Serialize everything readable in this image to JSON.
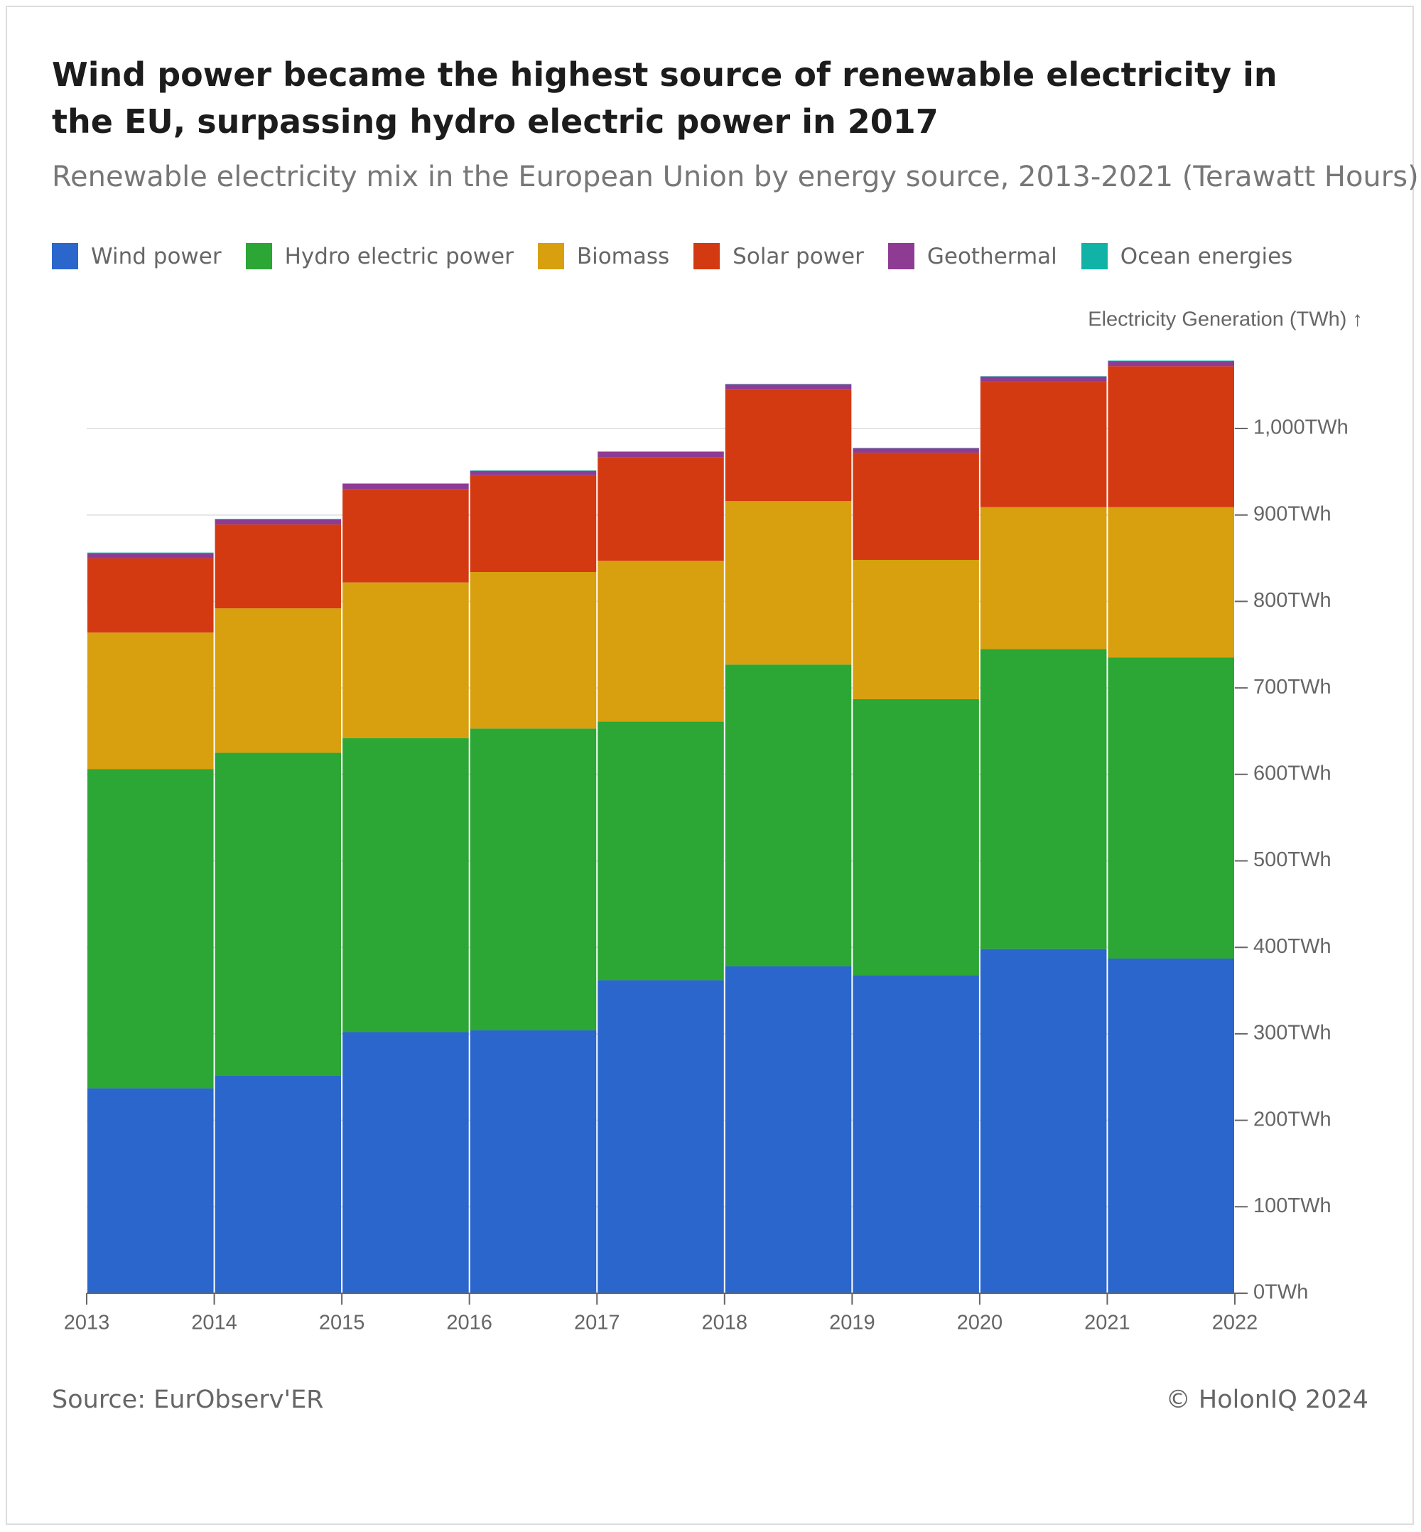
{
  "chart_data": {
    "type": "bar",
    "stacked": true,
    "title": "Wind power became the highest source of renewable electricity in the EU, surpassing hydro electric power in 2017",
    "subtitle": "Renewable electricity mix in the European Union by energy source, 2013-2021 (Terawatt Hours)",
    "y_axis_label": "Electricity Generation (TWh) ↑",
    "source": "Source: EurObserv'ER",
    "credit": "© HolonIQ 2024",
    "x": [
      2013,
      2014,
      2015,
      2016,
      2017,
      2018,
      2019,
      2020,
      2021
    ],
    "xlim": [
      2013,
      2022
    ],
    "xticks": [
      2013,
      2014,
      2015,
      2016,
      2017,
      2018,
      2019,
      2020,
      2021,
      2022
    ],
    "ylim": [
      0,
      1100
    ],
    "yticks": [
      {
        "value": 0,
        "label": "0TWh"
      },
      {
        "value": 100,
        "label": "100TWh"
      },
      {
        "value": 200,
        "label": "200TWh"
      },
      {
        "value": 300,
        "label": "300TWh"
      },
      {
        "value": 400,
        "label": "400TWh"
      },
      {
        "value": 500,
        "label": "500TWh"
      },
      {
        "value": 600,
        "label": "600TWh"
      },
      {
        "value": 700,
        "label": "700TWh"
      },
      {
        "value": 800,
        "label": "800TWh"
      },
      {
        "value": 900,
        "label": "900TWh"
      },
      {
        "value": 1000,
        "label": "1,000TWh"
      }
    ],
    "grid": true,
    "y_axis_side": "right",
    "series": [
      {
        "name": "Wind power",
        "color": "#2a66cc",
        "values": [
          237,
          252,
          302,
          304,
          362,
          378,
          368,
          398,
          387
        ]
      },
      {
        "name": "Hydro electric power",
        "color": "#2ca635",
        "values": [
          369,
          373,
          340,
          349,
          299,
          349,
          319,
          347,
          348
        ]
      },
      {
        "name": "Biomass",
        "color": "#d89f0e",
        "values": [
          158,
          167,
          180,
          181,
          186,
          189,
          161,
          164,
          174
        ]
      },
      {
        "name": "Solar power",
        "color": "#d33a12",
        "values": [
          86,
          97,
          108,
          112,
          120,
          129,
          124,
          145,
          163
        ]
      },
      {
        "name": "Geothermal",
        "color": "#8e3c93",
        "values": [
          6,
          6,
          6,
          5,
          6,
          6,
          5,
          6,
          6
        ]
      },
      {
        "name": "Ocean energies",
        "color": "#10b3a6",
        "values": [
          0.5,
          0.5,
          0.5,
          0.5,
          0.5,
          0.5,
          0.5,
          0.5,
          0.5
        ]
      }
    ]
  }
}
